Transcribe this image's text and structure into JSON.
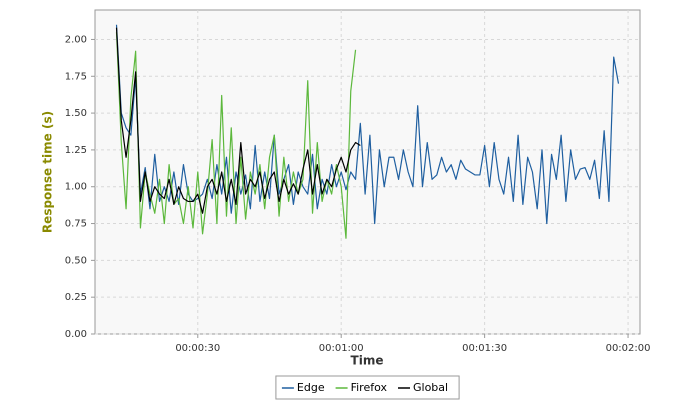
{
  "chart_data": {
    "type": "line",
    "x_label": "Time",
    "y_label": "Response time (s)",
    "x": [
      13,
      14,
      15,
      16,
      17,
      18,
      19,
      20,
      21,
      22,
      23,
      24,
      25,
      26,
      27,
      28,
      29,
      30,
      31,
      32,
      33,
      34,
      35,
      36,
      37,
      38,
      39,
      40,
      41,
      42,
      43,
      44,
      45,
      46,
      47,
      48,
      49,
      50,
      51,
      52,
      53,
      54,
      55,
      56,
      57,
      58,
      59,
      60,
      61,
      62,
      63,
      64,
      65,
      66,
      67,
      68,
      69,
      70,
      71,
      72,
      73,
      74,
      75,
      76,
      77,
      78,
      79,
      80,
      81,
      82,
      83,
      84,
      85,
      86,
      87,
      88,
      89,
      90,
      91,
      92,
      93,
      94,
      95,
      96,
      97,
      98,
      99,
      100,
      101,
      102,
      103,
      104,
      105,
      106,
      107,
      108,
      109,
      110,
      111,
      112,
      113,
      114,
      115,
      116,
      117,
      118
    ],
    "series": [
      {
        "name": "Edge",
        "color": "#1f5fa0",
        "values": [
          2.1,
          1.5,
          1.4,
          1.35,
          1.75,
          0.95,
          1.13,
          0.85,
          1.22,
          0.9,
          1.0,
          0.9,
          1.1,
          0.88,
          1.15,
          0.95,
          0.9,
          0.92,
          0.95,
          1.05,
          0.92,
          1.15,
          0.95,
          1.2,
          0.82,
          1.1,
          0.95,
          1.08,
          0.85,
          1.28,
          0.9,
          1.1,
          0.92,
          1.35,
          0.95,
          1.05,
          1.15,
          0.88,
          1.1,
          1.0,
          0.95,
          1.22,
          0.85,
          1.05,
          0.95,
          1.15,
          1.0,
          1.1,
          0.98,
          1.1,
          1.05,
          1.43,
          0.95,
          1.35,
          0.75,
          1.25,
          1.0,
          1.2,
          1.2,
          1.05,
          1.25,
          1.1,
          1.0,
          1.55,
          1.0,
          1.3,
          1.05,
          1.08,
          1.2,
          1.1,
          1.15,
          1.05,
          1.18,
          1.12,
          1.1,
          1.08,
          1.08,
          1.28,
          1.0,
          1.3,
          1.05,
          0.95,
          1.2,
          0.9,
          1.35,
          0.88,
          1.2,
          1.1,
          0.85,
          1.25,
          0.75,
          1.22,
          1.05,
          1.35,
          0.9,
          1.25,
          1.05,
          1.12,
          1.13,
          1.05,
          1.18,
          0.92,
          1.38,
          0.9,
          1.88,
          1.7
        ]
      },
      {
        "name": "Firefox",
        "color": "#5cb83c",
        "values": [
          2.05,
          1.3,
          0.85,
          1.6,
          1.92,
          0.72,
          1.1,
          0.95,
          0.82,
          1.05,
          0.75,
          1.15,
          0.88,
          0.92,
          0.75,
          1.0,
          0.72,
          1.1,
          0.68,
          0.95,
          1.32,
          0.75,
          1.62,
          0.8,
          1.4,
          0.75,
          1.2,
          0.78,
          1.1,
          0.95,
          1.15,
          0.85,
          1.2,
          1.35,
          0.8,
          1.2,
          0.9,
          1.1,
          0.95,
          1.05,
          1.72,
          0.82,
          1.3,
          0.9,
          1.05,
          0.95,
          1.15,
          1.0,
          0.65,
          1.65,
          1.93,
          null,
          null,
          null,
          null,
          null,
          null,
          null,
          null,
          null,
          null,
          null,
          null,
          null,
          null,
          null,
          null,
          null,
          null,
          null,
          null,
          null,
          null,
          null,
          null,
          null,
          null,
          null,
          null,
          null,
          null,
          null,
          null,
          null,
          null,
          null,
          null,
          null,
          null,
          null,
          null,
          null,
          null,
          null,
          null,
          null,
          null,
          null,
          null,
          null,
          null,
          null,
          null,
          null,
          null,
          null
        ]
      },
      {
        "name": "Global",
        "color": "#000000",
        "values": [
          2.08,
          1.45,
          1.2,
          1.45,
          1.78,
          0.9,
          1.1,
          0.9,
          1.0,
          0.95,
          0.92,
          1.05,
          0.88,
          1.0,
          0.92,
          0.9,
          0.9,
          0.95,
          0.82,
          1.0,
          1.05,
          0.95,
          1.1,
          0.9,
          1.05,
          0.88,
          1.3,
          0.95,
          1.05,
          1.0,
          1.1,
          0.92,
          1.05,
          1.1,
          0.9,
          1.05,
          0.95,
          1.02,
          0.95,
          1.12,
          1.25,
          0.95,
          1.15,
          0.95,
          1.05,
          1.0,
          1.12,
          1.2,
          1.1,
          1.25,
          1.3,
          1.28,
          null,
          null,
          null,
          null,
          null,
          null,
          null,
          null,
          null,
          null,
          null,
          null,
          null,
          null,
          null,
          null,
          null,
          null,
          null,
          null,
          null,
          null,
          null,
          null,
          null,
          null,
          null,
          null,
          null,
          null,
          null,
          null,
          null,
          null,
          null,
          null,
          null,
          null,
          null,
          null,
          null,
          null,
          null,
          null,
          null,
          null,
          null,
          null,
          null,
          null,
          null,
          null,
          null,
          null
        ]
      }
    ],
    "xlim": [
      8.5,
      122.5
    ],
    "xticks": [
      {
        "value": 30,
        "label": "00:00:30"
      },
      {
        "value": 60,
        "label": "00:01:00"
      },
      {
        "value": 90,
        "label": "00:01:30"
      },
      {
        "value": 120,
        "label": "00:02:00"
      }
    ],
    "ylim": [
      0,
      2.2
    ],
    "yticks": [
      {
        "value": 0,
        "label": "0.00"
      },
      {
        "value": 0.25,
        "label": "0.25"
      },
      {
        "value": 0.5,
        "label": "0.50"
      },
      {
        "value": 0.75,
        "label": "0.75"
      },
      {
        "value": 1,
        "label": "1.00"
      },
      {
        "value": 1.25,
        "label": "1.25"
      },
      {
        "value": 1.5,
        "label": "1.50"
      },
      {
        "value": 1.75,
        "label": "1.75"
      },
      {
        "value": 2,
        "label": "2.00"
      }
    ],
    "grid": true,
    "legend": "bottom"
  }
}
